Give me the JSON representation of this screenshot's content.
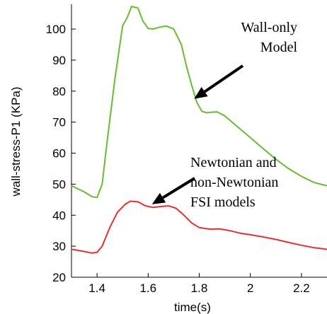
{
  "chart_data": {
    "type": "line",
    "xlabel": "time(s)",
    "ylabel": "wall-stress-P1 (KPa)",
    "xlim": [
      1.3,
      2.3
    ],
    "ylim": [
      20,
      108
    ],
    "x_ticks": [
      "1.4",
      "1.6",
      "1.8",
      "2",
      "2.2"
    ],
    "x_tick_values": [
      1.4,
      1.6,
      1.8,
      2.0,
      2.2
    ],
    "y_ticks": [
      "20",
      "30",
      "40",
      "50",
      "60",
      "70",
      "80",
      "90",
      "100"
    ],
    "y_tick_values": [
      20,
      30,
      40,
      50,
      60,
      70,
      80,
      90,
      100
    ],
    "grid": false,
    "series": [
      {
        "color": "#66bb33",
        "points": [
          [
            1.3,
            49.5
          ],
          [
            1.35,
            47.5
          ],
          [
            1.38,
            46
          ],
          [
            1.4,
            45.7
          ],
          [
            1.42,
            50
          ],
          [
            1.44,
            64
          ],
          [
            1.47,
            84
          ],
          [
            1.5,
            101
          ],
          [
            1.52,
            104
          ],
          [
            1.535,
            107.3
          ],
          [
            1.56,
            106.8
          ],
          [
            1.58,
            102.5
          ],
          [
            1.6,
            100.2
          ],
          [
            1.62,
            100
          ],
          [
            1.64,
            100.5
          ],
          [
            1.67,
            101
          ],
          [
            1.7,
            100
          ],
          [
            1.73,
            95
          ],
          [
            1.75,
            88
          ],
          [
            1.77,
            82
          ],
          [
            1.79,
            76.5
          ],
          [
            1.81,
            73.5
          ],
          [
            1.83,
            73
          ],
          [
            1.85,
            73.2
          ],
          [
            1.87,
            73.3
          ],
          [
            1.9,
            72
          ],
          [
            1.95,
            68.5
          ],
          [
            2.0,
            65
          ],
          [
            2.05,
            61.5
          ],
          [
            2.1,
            58
          ],
          [
            2.15,
            55
          ],
          [
            2.2,
            52.5
          ],
          [
            2.25,
            50.5
          ],
          [
            2.3,
            49.5
          ]
        ]
      },
      {
        "color": "#e23030",
        "points": [
          [
            1.3,
            29
          ],
          [
            1.35,
            28.3
          ],
          [
            1.38,
            27.8
          ],
          [
            1.4,
            28
          ],
          [
            1.42,
            30
          ],
          [
            1.45,
            36
          ],
          [
            1.48,
            41
          ],
          [
            1.51,
            43.5
          ],
          [
            1.53,
            44.5
          ],
          [
            1.56,
            44.3
          ],
          [
            1.59,
            43
          ],
          [
            1.62,
            42.5
          ],
          [
            1.65,
            42.8
          ],
          [
            1.68,
            43
          ],
          [
            1.71,
            42.2
          ],
          [
            1.74,
            40
          ],
          [
            1.77,
            37.5
          ],
          [
            1.8,
            36
          ],
          [
            1.84,
            35.5
          ],
          [
            1.88,
            35.6
          ],
          [
            1.92,
            35
          ],
          [
            1.96,
            34.2
          ],
          [
            2.0,
            33.7
          ],
          [
            2.05,
            33
          ],
          [
            2.1,
            32.2
          ],
          [
            2.15,
            31.2
          ],
          [
            2.2,
            30.3
          ],
          [
            2.25,
            29.5
          ],
          [
            2.3,
            29
          ]
        ]
      }
    ],
    "annotations": [
      {
        "lines": [
          "Wall-only",
          "Model"
        ],
        "arrow_to": [
          1.78,
          77.5
        ]
      },
      {
        "lines": [
          "Newtonian and",
          "non-Newtonian",
          "FSI models"
        ],
        "arrow_to": [
          1.615,
          43.5
        ]
      }
    ]
  }
}
